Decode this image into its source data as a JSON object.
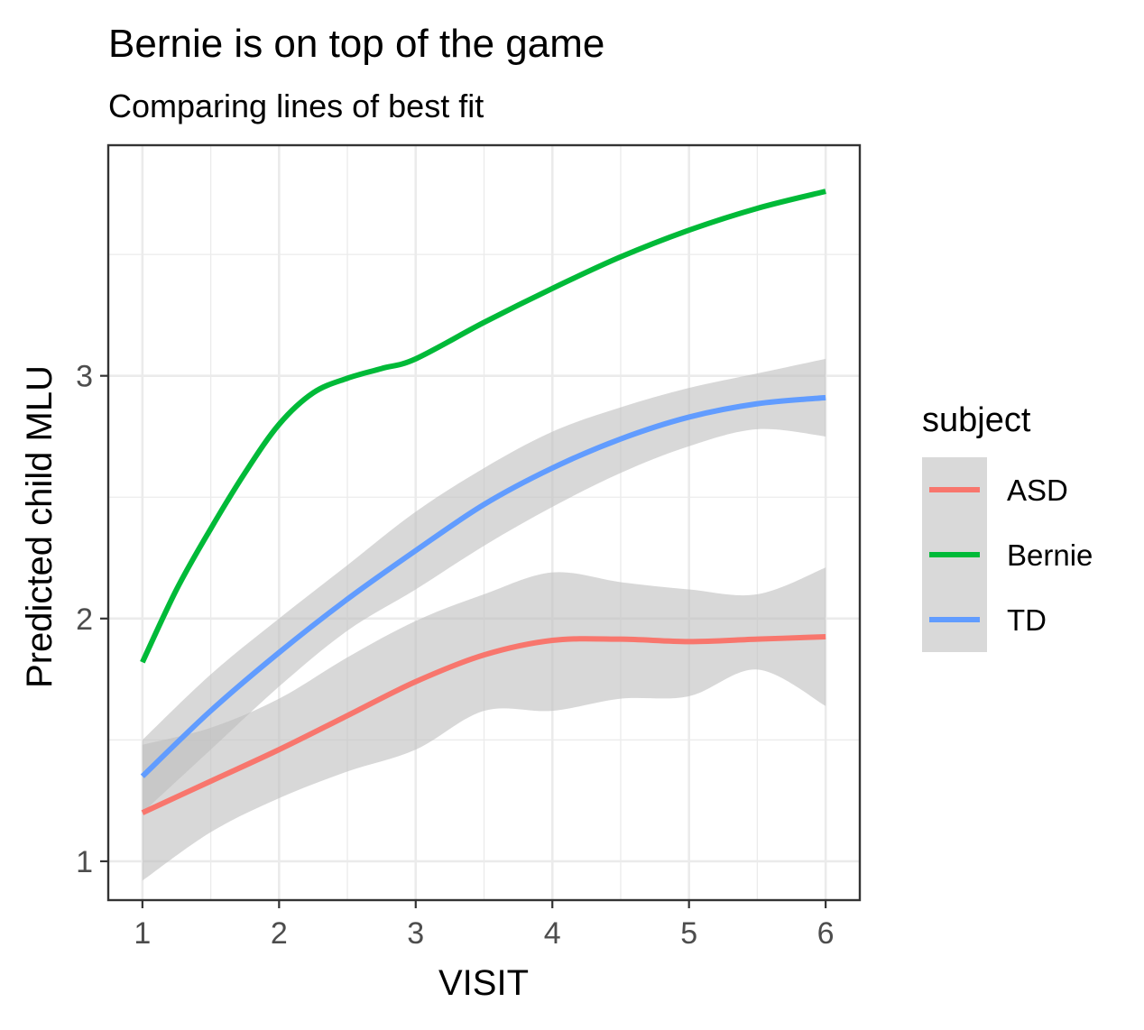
{
  "chart_data": {
    "type": "line",
    "title": "Bernie is on top of the game",
    "subtitle": "Comparing lines of best fit",
    "xlabel": "VISIT",
    "ylabel": "Predicted child MLU",
    "xlim": [
      0.75,
      6.25
    ],
    "ylim": [
      0.84,
      3.95
    ],
    "x_ticks": [
      1,
      2,
      3,
      4,
      5,
      6
    ],
    "y_ticks": [
      1,
      2,
      3
    ],
    "grid": true,
    "legend": {
      "title": "subject",
      "position": "right",
      "entries": [
        "ASD",
        "Bernie",
        "TD"
      ]
    },
    "colors": {
      "ASD": "#F8766D",
      "Bernie": "#00BA38",
      "TD": "#619CFF",
      "ribbon": "#BEBEBE",
      "panel_grid": "#EBEBEB",
      "panel_border": "#333333",
      "text": "#000000",
      "tick_text": "#4D4D4D"
    },
    "series": [
      {
        "name": "ASD",
        "x": [
          1,
          1.5,
          2,
          2.5,
          3,
          3.5,
          4,
          4.5,
          5,
          5.5,
          6
        ],
        "y": [
          1.2,
          1.33,
          1.46,
          1.6,
          1.74,
          1.85,
          1.91,
          1.915,
          1.905,
          1.915,
          1.925
        ],
        "lower": [
          0.92,
          1.12,
          1.26,
          1.37,
          1.46,
          1.62,
          1.62,
          1.67,
          1.68,
          1.79,
          1.64
        ],
        "upper": [
          1.48,
          1.55,
          1.67,
          1.84,
          1.99,
          2.1,
          2.19,
          2.15,
          2.12,
          2.1,
          2.21
        ]
      },
      {
        "name": "Bernie",
        "x": [
          1,
          1.25,
          1.5,
          1.75,
          2,
          2.25,
          2.5,
          2.75,
          3,
          3.5,
          4,
          4.5,
          5,
          5.5,
          6
        ],
        "y": [
          1.82,
          2.12,
          2.37,
          2.6,
          2.8,
          2.93,
          2.99,
          3.03,
          3.07,
          3.22,
          3.36,
          3.49,
          3.6,
          3.69,
          3.76
        ]
      },
      {
        "name": "TD",
        "x": [
          1,
          1.5,
          2,
          2.5,
          3,
          3.5,
          4,
          4.5,
          5,
          5.5,
          6
        ],
        "y": [
          1.35,
          1.62,
          1.86,
          2.08,
          2.28,
          2.47,
          2.62,
          2.74,
          2.83,
          2.885,
          2.91
        ],
        "lower": [
          1.2,
          1.46,
          1.72,
          1.95,
          2.12,
          2.3,
          2.46,
          2.6,
          2.71,
          2.78,
          2.75
        ],
        "upper": [
          1.5,
          1.77,
          2.0,
          2.22,
          2.44,
          2.62,
          2.77,
          2.87,
          2.95,
          3.01,
          3.07
        ]
      }
    ]
  }
}
